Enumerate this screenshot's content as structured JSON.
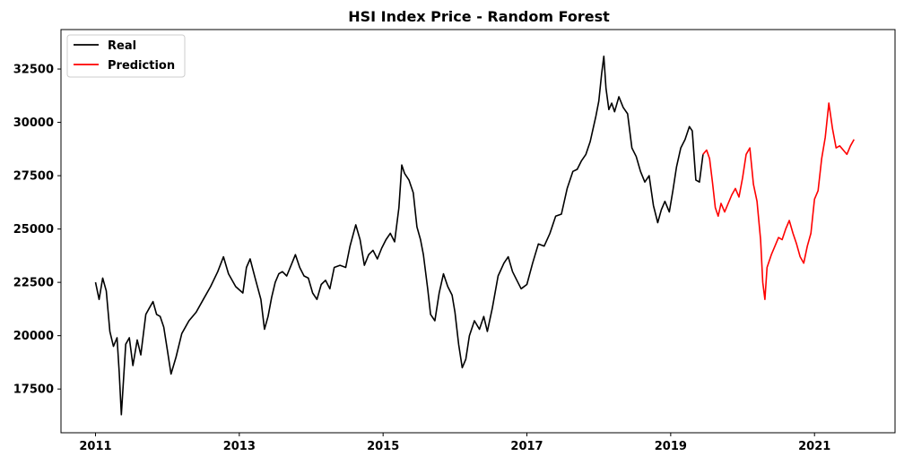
{
  "chart_data": {
    "type": "line",
    "title": "HSI Index Price - Random Forest",
    "xlabel": "",
    "ylabel": "",
    "x_ticks": [
      "2011",
      "2013",
      "2015",
      "2017",
      "2019",
      "2021"
    ],
    "y_ticks": [
      "17500",
      "20000",
      "22500",
      "25000",
      "27500",
      "30000",
      "32500"
    ],
    "xlim": [
      2010.52,
      2022.12
    ],
    "ylim": [
      15450,
      34350
    ],
    "legend_position": "top-left",
    "grid": false,
    "series": [
      {
        "name": "Real",
        "color": "#000000",
        "points": [
          [
            2011.0,
            22500
          ],
          [
            2011.05,
            21700
          ],
          [
            2011.1,
            22700
          ],
          [
            2011.15,
            22100
          ],
          [
            2011.2,
            20200
          ],
          [
            2011.25,
            19500
          ],
          [
            2011.3,
            19900
          ],
          [
            2011.33,
            18300
          ],
          [
            2011.36,
            16300
          ],
          [
            2011.42,
            19600
          ],
          [
            2011.47,
            19900
          ],
          [
            2011.52,
            18600
          ],
          [
            2011.58,
            19800
          ],
          [
            2011.63,
            19100
          ],
          [
            2011.7,
            21000
          ],
          [
            2011.75,
            21300
          ],
          [
            2011.8,
            21600
          ],
          [
            2011.85,
            21000
          ],
          [
            2011.9,
            20900
          ],
          [
            2011.95,
            20400
          ],
          [
            2012.0,
            19300
          ],
          [
            2012.05,
            18200
          ],
          [
            2012.12,
            19000
          ],
          [
            2012.2,
            20100
          ],
          [
            2012.3,
            20700
          ],
          [
            2012.4,
            21100
          ],
          [
            2012.5,
            21700
          ],
          [
            2012.6,
            22300
          ],
          [
            2012.7,
            23000
          ],
          [
            2012.78,
            23700
          ],
          [
            2012.85,
            22900
          ],
          [
            2012.95,
            22300
          ],
          [
            2013.05,
            22000
          ],
          [
            2013.1,
            23200
          ],
          [
            2013.15,
            23600
          ],
          [
            2013.22,
            22700
          ],
          [
            2013.3,
            21700
          ],
          [
            2013.35,
            20300
          ],
          [
            2013.4,
            20900
          ],
          [
            2013.45,
            21800
          ],
          [
            2013.5,
            22500
          ],
          [
            2013.55,
            22900
          ],
          [
            2013.6,
            23000
          ],
          [
            2013.66,
            22800
          ],
          [
            2013.72,
            23300
          ],
          [
            2013.78,
            23800
          ],
          [
            2013.84,
            23200
          ],
          [
            2013.9,
            22800
          ],
          [
            2013.96,
            22700
          ],
          [
            2014.02,
            22000
          ],
          [
            2014.08,
            21700
          ],
          [
            2014.14,
            22400
          ],
          [
            2014.2,
            22600
          ],
          [
            2014.26,
            22200
          ],
          [
            2014.32,
            23200
          ],
          [
            2014.4,
            23300
          ],
          [
            2014.48,
            23200
          ],
          [
            2014.54,
            24200
          ],
          [
            2014.62,
            25200
          ],
          [
            2014.68,
            24500
          ],
          [
            2014.74,
            23300
          ],
          [
            2014.8,
            23800
          ],
          [
            2014.86,
            24000
          ],
          [
            2014.92,
            23600
          ],
          [
            2014.98,
            24100
          ],
          [
            2015.04,
            24500
          ],
          [
            2015.1,
            24800
          ],
          [
            2015.16,
            24400
          ],
          [
            2015.22,
            26000
          ],
          [
            2015.26,
            28000
          ],
          [
            2015.3,
            27600
          ],
          [
            2015.36,
            27300
          ],
          [
            2015.42,
            26700
          ],
          [
            2015.47,
            25100
          ],
          [
            2015.52,
            24500
          ],
          [
            2015.56,
            23800
          ],
          [
            2015.62,
            22200
          ],
          [
            2015.66,
            21000
          ],
          [
            2015.72,
            20700
          ],
          [
            2015.78,
            22000
          ],
          [
            2015.84,
            22900
          ],
          [
            2015.9,
            22300
          ],
          [
            2015.96,
            21900
          ],
          [
            2016.0,
            21100
          ],
          [
            2016.05,
            19600
          ],
          [
            2016.1,
            18500
          ],
          [
            2016.15,
            18900
          ],
          [
            2016.2,
            20000
          ],
          [
            2016.27,
            20700
          ],
          [
            2016.34,
            20300
          ],
          [
            2016.4,
            20900
          ],
          [
            2016.45,
            20200
          ],
          [
            2016.52,
            21300
          ],
          [
            2016.6,
            22800
          ],
          [
            2016.68,
            23400
          ],
          [
            2016.74,
            23700
          ],
          [
            2016.8,
            23000
          ],
          [
            2016.86,
            22600
          ],
          [
            2016.92,
            22200
          ],
          [
            2017.0,
            22400
          ],
          [
            2017.08,
            23400
          ],
          [
            2017.16,
            24300
          ],
          [
            2017.24,
            24200
          ],
          [
            2017.32,
            24800
          ],
          [
            2017.4,
            25600
          ],
          [
            2017.48,
            25700
          ],
          [
            2017.56,
            26900
          ],
          [
            2017.64,
            27700
          ],
          [
            2017.7,
            27800
          ],
          [
            2017.76,
            28200
          ],
          [
            2017.82,
            28500
          ],
          [
            2017.88,
            29100
          ],
          [
            2017.92,
            29700
          ],
          [
            2017.96,
            30300
          ],
          [
            2018.0,
            31000
          ],
          [
            2018.04,
            32300
          ],
          [
            2018.07,
            33100
          ],
          [
            2018.1,
            31600
          ],
          [
            2018.14,
            30600
          ],
          [
            2018.18,
            30900
          ],
          [
            2018.22,
            30500
          ],
          [
            2018.28,
            31200
          ],
          [
            2018.34,
            30700
          ],
          [
            2018.4,
            30400
          ],
          [
            2018.46,
            28800
          ],
          [
            2018.52,
            28400
          ],
          [
            2018.58,
            27700
          ],
          [
            2018.64,
            27200
          ],
          [
            2018.7,
            27500
          ],
          [
            2018.76,
            26100
          ],
          [
            2018.82,
            25300
          ],
          [
            2018.87,
            25900
          ],
          [
            2018.92,
            26300
          ],
          [
            2018.98,
            25800
          ],
          [
            2019.03,
            26800
          ],
          [
            2019.08,
            27900
          ],
          [
            2019.14,
            28800
          ],
          [
            2019.2,
            29200
          ],
          [
            2019.26,
            29800
          ],
          [
            2019.3,
            29600
          ],
          [
            2019.35,
            27300
          ],
          [
            2019.4,
            27200
          ],
          [
            2019.45,
            28500
          ]
        ]
      },
      {
        "name": "Prediction",
        "color": "#ff0000",
        "points": [
          [
            2019.45,
            28500
          ],
          [
            2019.5,
            28700
          ],
          [
            2019.54,
            28300
          ],
          [
            2019.58,
            27200
          ],
          [
            2019.62,
            26000
          ],
          [
            2019.66,
            25600
          ],
          [
            2019.7,
            26200
          ],
          [
            2019.75,
            25800
          ],
          [
            2019.8,
            26200
          ],
          [
            2019.85,
            26600
          ],
          [
            2019.9,
            26900
          ],
          [
            2019.95,
            26500
          ],
          [
            2020.0,
            27400
          ],
          [
            2020.05,
            28500
          ],
          [
            2020.1,
            28800
          ],
          [
            2020.15,
            27100
          ],
          [
            2020.2,
            26300
          ],
          [
            2020.25,
            24500
          ],
          [
            2020.28,
            22500
          ],
          [
            2020.31,
            21700
          ],
          [
            2020.34,
            23200
          ],
          [
            2020.4,
            23800
          ],
          [
            2020.45,
            24200
          ],
          [
            2020.5,
            24600
          ],
          [
            2020.55,
            24500
          ],
          [
            2020.6,
            25000
          ],
          [
            2020.65,
            25400
          ],
          [
            2020.7,
            24800
          ],
          [
            2020.75,
            24300
          ],
          [
            2020.8,
            23700
          ],
          [
            2020.85,
            23400
          ],
          [
            2020.9,
            24200
          ],
          [
            2020.95,
            24800
          ],
          [
            2021.0,
            26400
          ],
          [
            2021.05,
            26800
          ],
          [
            2021.1,
            28300
          ],
          [
            2021.15,
            29300
          ],
          [
            2021.2,
            30900
          ],
          [
            2021.25,
            29700
          ],
          [
            2021.3,
            28800
          ],
          [
            2021.35,
            28900
          ],
          [
            2021.4,
            28700
          ],
          [
            2021.45,
            28500
          ],
          [
            2021.5,
            28900
          ],
          [
            2021.55,
            29200
          ]
        ]
      }
    ]
  }
}
